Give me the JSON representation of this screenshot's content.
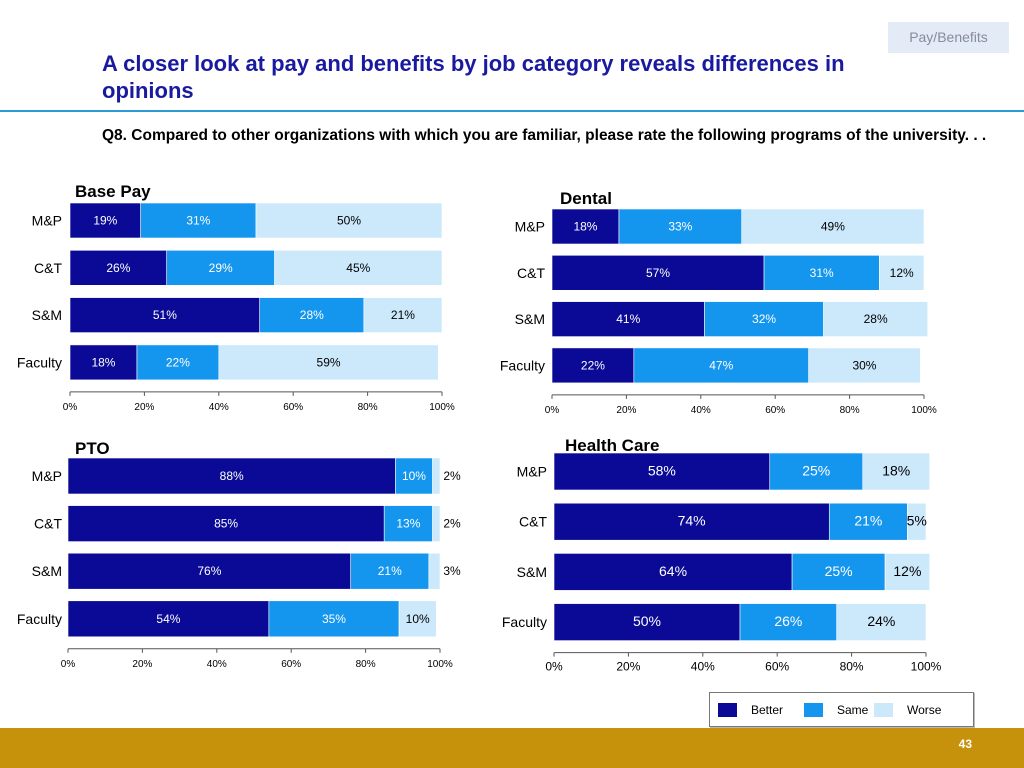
{
  "header": {
    "section_tag": "Pay/Benefits",
    "title": "A closer look at pay and benefits by job category reveals differences in opinions",
    "question": "Q8. Compared to other organizations with which you are familiar, please rate the following programs of the university. . ."
  },
  "colors": {
    "better": "#0a0a96",
    "same": "#1596ee",
    "worse": "#cce9fb"
  },
  "legend": {
    "better": "Better",
    "same": "Same",
    "worse": "Worse"
  },
  "footer": {
    "page_number": "43"
  },
  "chart_data": [
    {
      "type": "bar",
      "orientation": "horizontal",
      "stacked": true,
      "title": "Base Pay",
      "categories": [
        "M&P",
        "C&T",
        "S&M",
        "Faculty"
      ],
      "series": [
        {
          "name": "Better",
          "values": [
            19,
            26,
            51,
            18
          ]
        },
        {
          "name": "Same",
          "values": [
            31,
            29,
            28,
            22
          ]
        },
        {
          "name": "Worse",
          "values": [
            50,
            45,
            21,
            59
          ]
        }
      ],
      "xlim": [
        0,
        100
      ],
      "xticks": [
        "0%",
        "20%",
        "40%",
        "60%",
        "80%",
        "100%"
      ],
      "legend": "bottom-right"
    },
    {
      "type": "bar",
      "orientation": "horizontal",
      "stacked": true,
      "title": "Dental",
      "categories": [
        "M&P",
        "C&T",
        "S&M",
        "Faculty"
      ],
      "series": [
        {
          "name": "Better",
          "values": [
            18,
            57,
            41,
            22
          ]
        },
        {
          "name": "Same",
          "values": [
            33,
            31,
            32,
            47
          ]
        },
        {
          "name": "Worse",
          "values": [
            49,
            12,
            28,
            30
          ]
        }
      ],
      "xlim": [
        0,
        100
      ],
      "xticks": [
        "0%",
        "20%",
        "40%",
        "60%",
        "80%",
        "100%"
      ],
      "legend": "bottom-right"
    },
    {
      "type": "bar",
      "orientation": "horizontal",
      "stacked": true,
      "title": "PTO",
      "categories": [
        "M&P",
        "C&T",
        "S&M",
        "Faculty"
      ],
      "series": [
        {
          "name": "Better",
          "values": [
            88,
            85,
            76,
            54
          ]
        },
        {
          "name": "Same",
          "values": [
            10,
            13,
            21,
            35
          ]
        },
        {
          "name": "Worse",
          "values": [
            2,
            2,
            3,
            10
          ]
        }
      ],
      "xlim": [
        0,
        100
      ],
      "xticks": [
        "0%",
        "20%",
        "40%",
        "60%",
        "80%",
        "100%"
      ],
      "legend": "bottom-right"
    },
    {
      "type": "bar",
      "orientation": "horizontal",
      "stacked": true,
      "title": "Health Care",
      "categories": [
        "M&P",
        "C&T",
        "S&M",
        "Faculty"
      ],
      "series": [
        {
          "name": "Better",
          "values": [
            58,
            74,
            64,
            50
          ]
        },
        {
          "name": "Same",
          "values": [
            25,
            21,
            25,
            26
          ]
        },
        {
          "name": "Worse",
          "values": [
            18,
            5,
            12,
            24
          ]
        }
      ],
      "xlim": [
        0,
        100
      ],
      "xticks": [
        "0%",
        "20%",
        "40%",
        "60%",
        "80%",
        "100%"
      ],
      "legend": "bottom-right"
    }
  ]
}
